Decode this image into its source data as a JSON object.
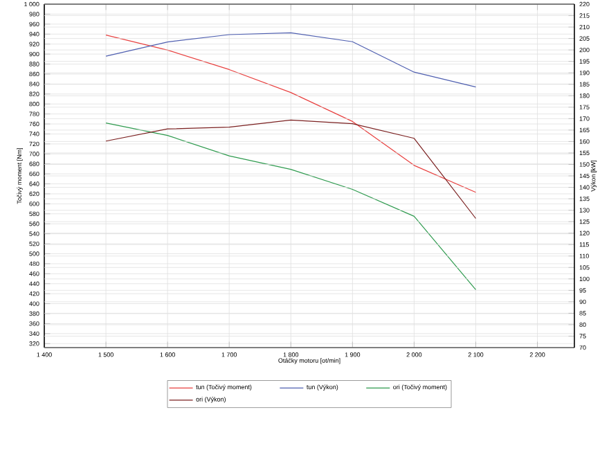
{
  "chart_data": {
    "type": "line",
    "xlabel": "Otáčky motoru [ot/min]",
    "ylabel": "Točivý moment [Nm]",
    "y2label": "Výkon [kW]",
    "x": [
      1500,
      1600,
      1700,
      1800,
      1900,
      2000,
      2100
    ],
    "series": [
      {
        "name": "tun (Točivý moment)",
        "color": "#e8403f",
        "values": [
          938,
          908,
          869,
          823,
          765,
          677,
          623
        ]
      },
      {
        "name": "tun (Výkon)",
        "color": "#4f5fb0",
        "axis": "y2",
        "values": [
          197.3,
          203.5,
          206.7,
          207.5,
          203.6,
          190.3,
          183.8
        ]
      },
      {
        "name": "ori (Točivý moment)",
        "color": "#2e9a4e",
        "values": [
          762,
          737,
          696,
          669,
          629,
          575,
          428
        ]
      },
      {
        "name": "ori (Výkon)",
        "color": "#7a1f1f",
        "axis": "y2",
        "values": [
          160.2,
          165.5,
          166.3,
          169.4,
          167.8,
          161.4,
          126.4
        ]
      }
    ],
    "xlim": [
      1400,
      2260
    ],
    "xticks": [
      {
        "value": 1400,
        "label": "1 400"
      },
      {
        "value": 1500,
        "label": "1 500"
      },
      {
        "value": 1600,
        "label": "1 600"
      },
      {
        "value": 1700,
        "label": "1 700"
      },
      {
        "value": 1800,
        "label": "1 800"
      },
      {
        "value": 1900,
        "label": "1 900"
      },
      {
        "value": 2000,
        "label": "2 000"
      },
      {
        "value": 2100,
        "label": "2 100"
      },
      {
        "value": 2200,
        "label": "2 200"
      }
    ],
    "ylim": [
      312,
      1000
    ],
    "yticks": [
      320,
      340,
      360,
      380,
      400,
      420,
      440,
      460,
      480,
      500,
      520,
      540,
      560,
      580,
      600,
      620,
      640,
      660,
      680,
      700,
      720,
      740,
      760,
      780,
      800,
      820,
      840,
      860,
      880,
      900,
      920,
      940,
      960,
      980,
      {
        "value": 1000,
        "label": "1 000"
      }
    ],
    "y2lim": [
      70,
      220
    ],
    "y2ticks": [
      70,
      75,
      80,
      85,
      90,
      95,
      100,
      105,
      110,
      115,
      120,
      125,
      130,
      135,
      140,
      145,
      150,
      155,
      160,
      165,
      170,
      175,
      180,
      185,
      190,
      195,
      200,
      205,
      210,
      215,
      220
    ],
    "grid": true,
    "legend": "bottom",
    "marker": "none",
    "line_style": "solid"
  }
}
